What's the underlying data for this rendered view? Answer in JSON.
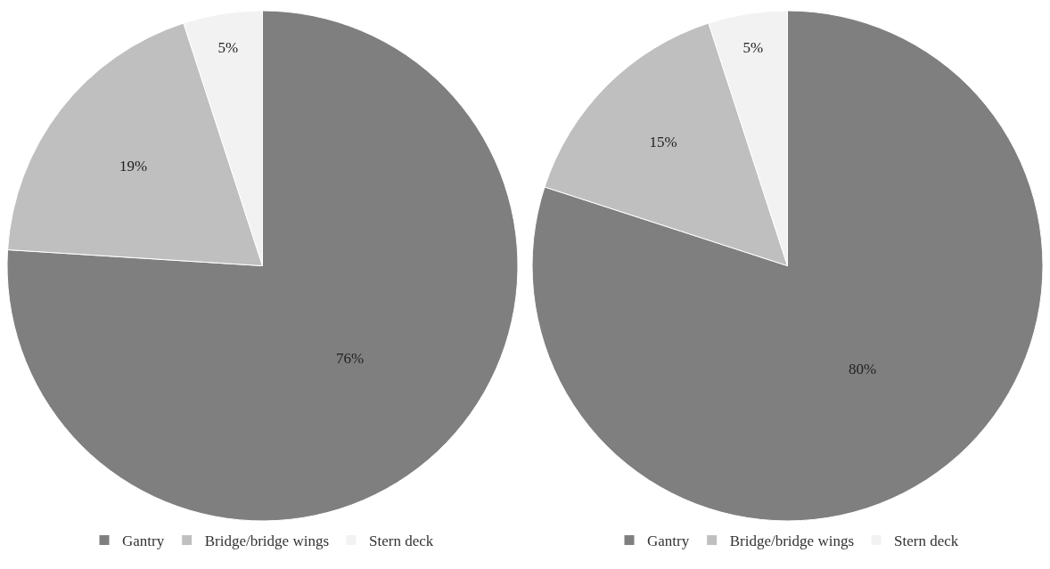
{
  "chart_data": [
    {
      "type": "pie",
      "categories": [
        "Gantry",
        "Bridge/bridge wings",
        "Stern deck"
      ],
      "values": [
        76,
        19,
        5
      ],
      "value_labels": [
        "76%",
        "19%",
        "5%"
      ],
      "colors": [
        "#7f7f7f",
        "#bfbfbf",
        "#f2f2f2"
      ],
      "legend": "bottom"
    },
    {
      "type": "pie",
      "categories": [
        "Gantry",
        "Bridge/bridge wings",
        "Stern deck"
      ],
      "values": [
        80,
        15,
        5
      ],
      "value_labels": [
        "80%",
        "15%",
        "5%"
      ],
      "colors": [
        "#7f7f7f",
        "#bfbfbf",
        "#f2f2f2"
      ],
      "legend": "bottom"
    }
  ]
}
